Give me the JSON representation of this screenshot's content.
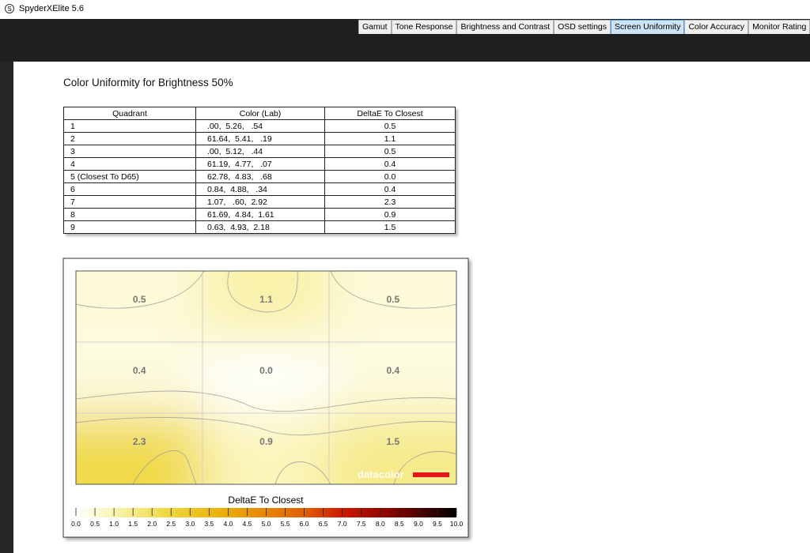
{
  "window": {
    "title": "SpyderXElite 5.6"
  },
  "tabs": [
    {
      "label": "Gamut",
      "selected": false
    },
    {
      "label": "Tone Response",
      "selected": false
    },
    {
      "label": "Brightness and Contrast",
      "selected": false
    },
    {
      "label": "OSD settings",
      "selected": false
    },
    {
      "label": "Screen Uniformity",
      "selected": true
    },
    {
      "label": "Color Accuracy",
      "selected": false
    },
    {
      "label": "Monitor Rating",
      "selected": false
    }
  ],
  "report": {
    "heading": "Color Uniformity for Brightness 50%",
    "table": {
      "columns": [
        "Quadrant",
        "Color (Lab)",
        "DeltaE To Closest"
      ],
      "rows": [
        [
          "1",
          ".00,  5.26,   .54",
          "0.5"
        ],
        [
          "2",
          "61.64,  5.41,   .19",
          "1.1"
        ],
        [
          "3",
          ".00,  5.12,   .44",
          "0.5"
        ],
        [
          "4",
          "61.19,  4.77,   .07",
          "0.4"
        ],
        [
          "5 (Closest To D65)",
          "62.78,  4.83,   .68",
          "0.0"
        ],
        [
          "6",
          "0.84,  4.88,   .34",
          "0.4"
        ],
        [
          "7",
          "1.07,   .60,  2.92",
          "2.3"
        ],
        [
          "8",
          "61.69,  4.84,  1.61",
          "0.9"
        ],
        [
          "9",
          "0.63,  4.93,  2.18",
          "1.5"
        ]
      ]
    },
    "heatmap": {
      "cells": [
        "0.5",
        "1.1",
        "0.5",
        "0.4",
        "0.0",
        "0.4",
        "2.3",
        "0.9",
        "1.5"
      ],
      "logo": "datacolor",
      "scale_title": "DeltaE To Closest",
      "scale_ticks": [
        "0.0",
        "0.5",
        "1.0",
        "1.5",
        "2.0",
        "2.5",
        "3.0",
        "3.5",
        "4.0",
        "4.5",
        "5.0",
        "5.5",
        "6.0",
        "6.5",
        "7.0",
        "7.5",
        "8.0",
        "8.5",
        "9.0",
        "9.5",
        "10.0"
      ]
    }
  }
}
